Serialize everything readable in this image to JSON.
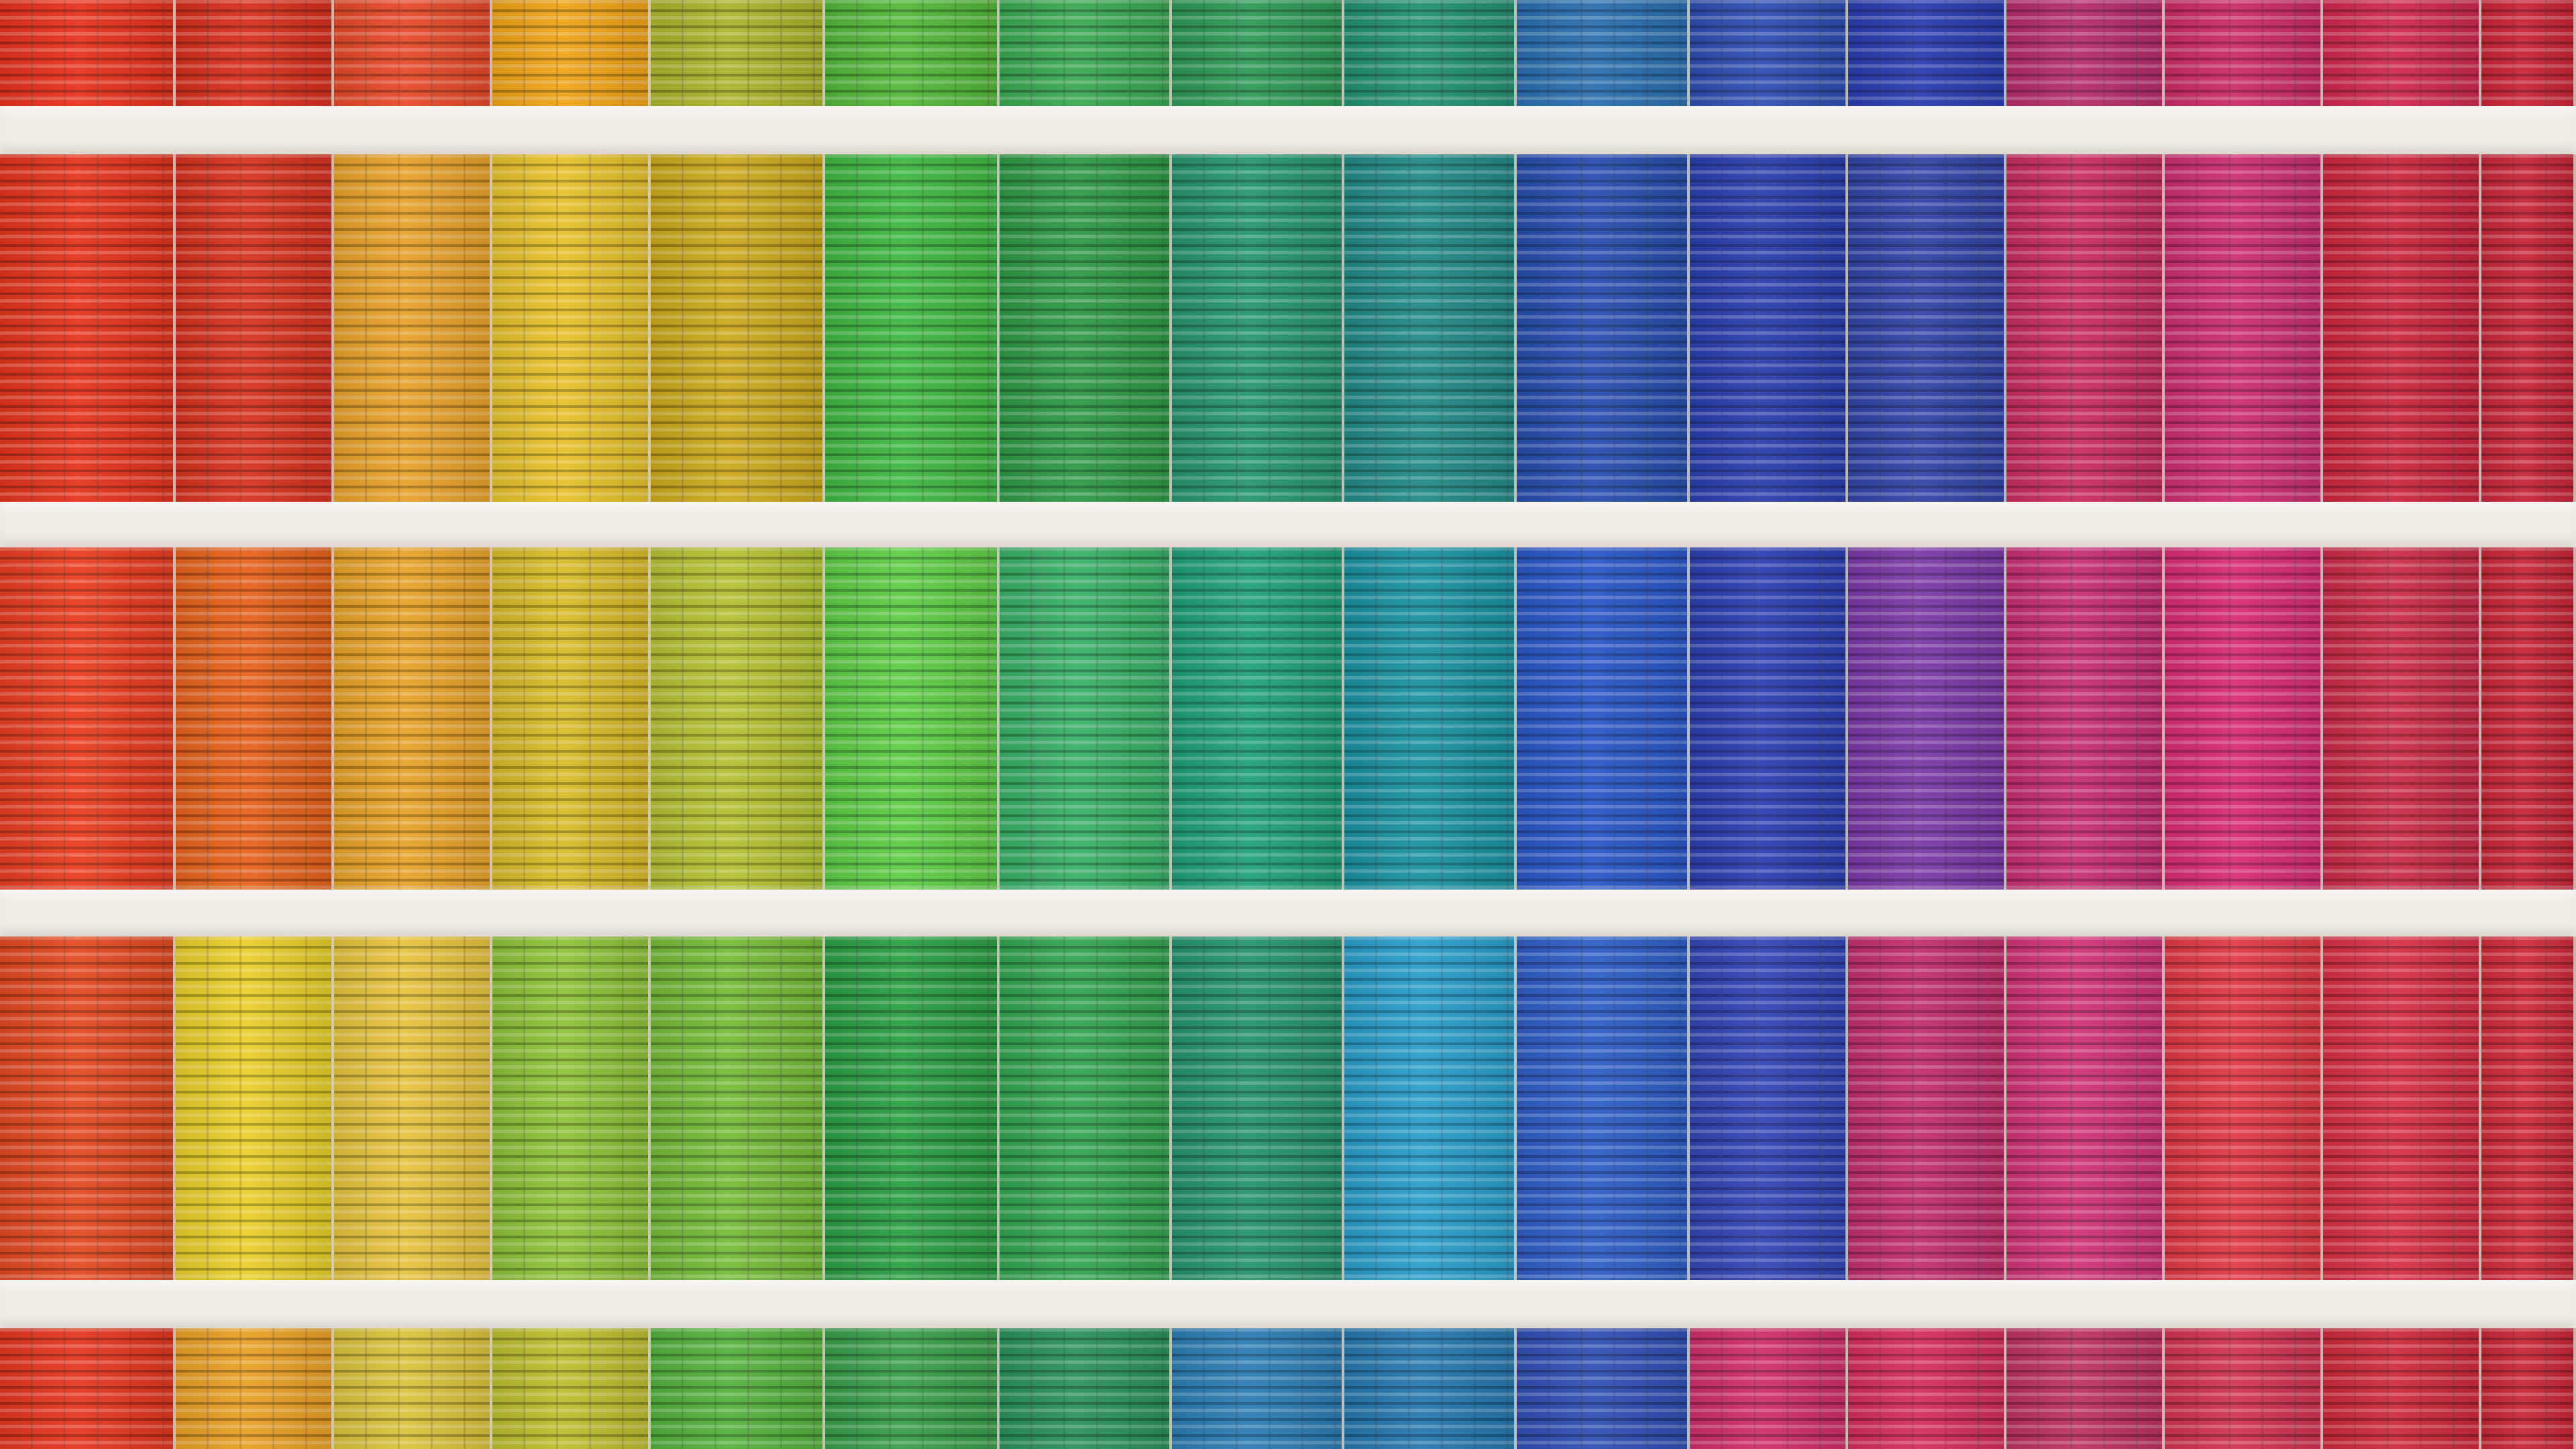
{
  "scene": {
    "subject": "photo",
    "floor_tones": [
      [
        "#e8321e",
        "#d8301f",
        "#e64a2a",
        "#f0a319",
        "#a9b52c",
        "#54b83a",
        "#3aa953",
        "#2e9a58",
        "#239173",
        "#2c6fb0",
        "#2f4fb2",
        "#2b3db0",
        "#b62e6b",
        "#cc2c68",
        "#cf2a50",
        "#c92538"
      ],
      [
        "#e5341e",
        "#d73321",
        "#e8a22a",
        "#e7c12c",
        "#cda91e",
        "#3fb844",
        "#2f9a47",
        "#27966f",
        "#238b86",
        "#284fb0",
        "#2c3fae",
        "#3444a8",
        "#c92e60",
        "#cc2f70",
        "#cb2740",
        "#c7263a"
      ],
      [
        "#ea3e21",
        "#e7621e",
        "#e8a329",
        "#d8bb2a",
        "#b3c232",
        "#5fcd46",
        "#3ab06a",
        "#22a07a",
        "#1c93a3",
        "#2b58c8",
        "#2e3fb2",
        "#7c3aa8",
        "#c82f72",
        "#d82d73",
        "#cb2d4a",
        "#c8273a"
      ],
      [
        "#e34a22",
        "#e9cf2a",
        "#e7c33e",
        "#8fc23a",
        "#76bb39",
        "#2b9f44",
        "#33a552",
        "#26946f",
        "#2b9ecb",
        "#2f5ec6",
        "#3445b6",
        "#c22f6b",
        "#d03475",
        "#e13a45",
        "#d73047",
        "#cf2b3b"
      ],
      [
        "#e63721",
        "#eaa126",
        "#dbc33c",
        "#bcbf2f",
        "#57b23f",
        "#3a9f4c",
        "#2b9260",
        "#2d7eb5",
        "#2779b0",
        "#3150b4",
        "#cf2f6b",
        "#d52f5d",
        "#be3361",
        "#d23455",
        "#ce2b3d",
        "#c92738"
      ]
    ],
    "stripe_tones": [
      [
        "#f7a134",
        "#f4763a",
        "#f6cf55",
        "#f5e058",
        "#d6dd43",
        "#83d26a",
        "#47c267",
        "#4bb69c",
        "#3da4c4",
        "#d0467d",
        "#6a5ed6",
        "#d63c86",
        "#f2579b",
        "#f56a9a",
        "#ec5976",
        "#ef4a58"
      ]
    ]
  }
}
